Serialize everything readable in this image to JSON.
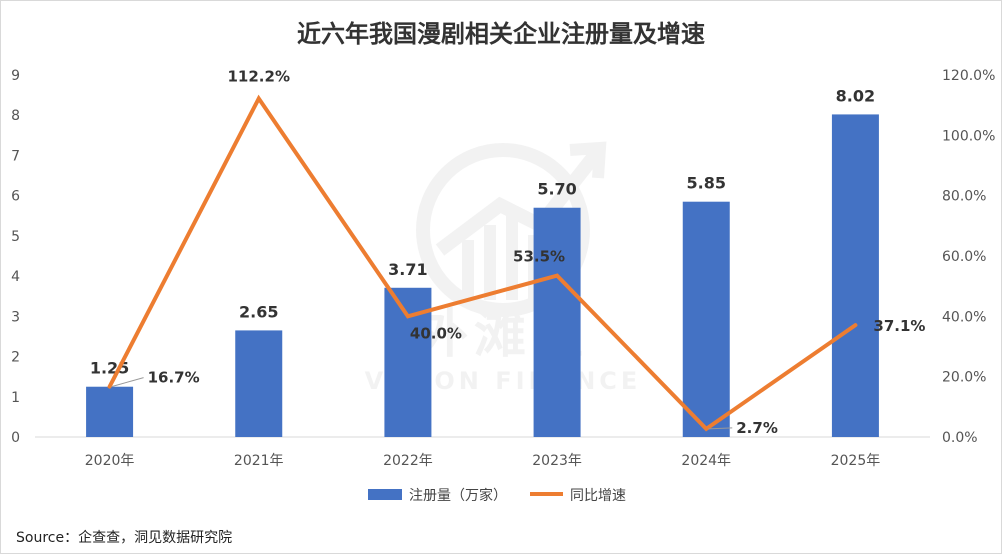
{
  "chart_data": {
    "type": "bar",
    "title": "近六年我国漫剧相关企业注册量及增速",
    "categories": [
      "2020年",
      "2021年",
      "2022年",
      "2023年",
      "2024年",
      "2025年"
    ],
    "series": [
      {
        "name": "注册量（万家）",
        "type": "bar",
        "axis": "left",
        "color": "#4472C4",
        "values": [
          1.25,
          2.65,
          3.71,
          5.7,
          5.85,
          8.02
        ],
        "labels": [
          "1.25",
          "2.65",
          "3.71",
          "5.70",
          "5.85",
          "8.02"
        ]
      },
      {
        "name": "同比增速",
        "type": "line",
        "axis": "right",
        "color": "#ED7D31",
        "values": [
          16.7,
          112.2,
          40.0,
          53.5,
          2.7,
          37.1
        ],
        "labels": [
          "16.7%",
          "112.2%",
          "40.0%",
          "53.5%",
          "2.7%",
          "37.1%"
        ]
      }
    ],
    "y_left": {
      "min": 0,
      "max": 9,
      "ticks": [
        "0",
        "1",
        "2",
        "3",
        "4",
        "5",
        "6",
        "7",
        "8",
        "9"
      ]
    },
    "y_right": {
      "min": 0,
      "max": 120,
      "ticks": [
        "0.0%",
        "20.0%",
        "40.0%",
        "60.0%",
        "80.0%",
        "100.0%",
        "120.0%"
      ]
    },
    "grid": false,
    "legend": "bottom",
    "watermark": {
      "cn": "外滩星",
      "en": "VISION FINANCE"
    },
    "source": "Source：企查查，洞见数据研究院"
  }
}
